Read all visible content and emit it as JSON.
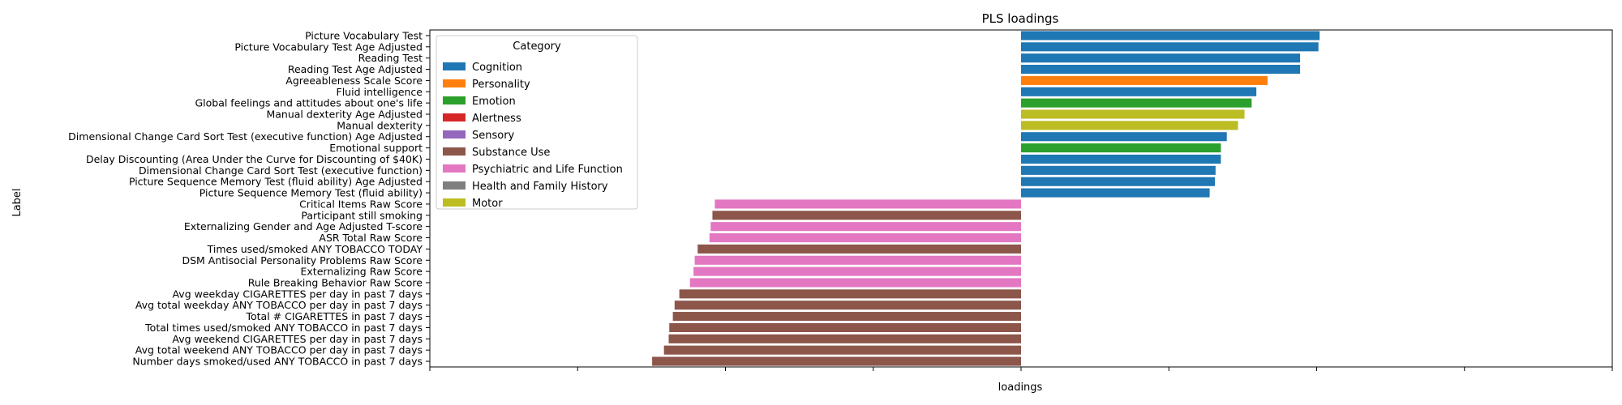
{
  "chart_data": {
    "type": "bar",
    "orientation": "horizontal",
    "title": "PLS loadings",
    "xlabel": "loadings",
    "ylabel": "Label",
    "xlim": [
      -1.0,
      1.0
    ],
    "xticks": [
      -1.0,
      -0.75,
      -0.5,
      -0.25,
      0.0,
      0.25,
      0.5,
      0.75,
      1.0
    ],
    "grid": false,
    "legend": {
      "title": "Category",
      "placement": "upper-left",
      "entries": [
        {
          "name": "Cognition",
          "color": "#1f77b4"
        },
        {
          "name": "Personality",
          "color": "#ff7f0e"
        },
        {
          "name": "Emotion",
          "color": "#2ca02c"
        },
        {
          "name": "Alertness",
          "color": "#d62728"
        },
        {
          "name": "Sensory",
          "color": "#9467bd"
        },
        {
          "name": "Substance Use",
          "color": "#8c564b"
        },
        {
          "name": "Psychiatric and Life Function",
          "color": "#e377c2"
        },
        {
          "name": "Health and Family History",
          "color": "#7f7f7f"
        },
        {
          "name": "Motor",
          "color": "#bcbd22"
        }
      ]
    },
    "bars": [
      {
        "label": "Picture Vocabulary Test",
        "value": 0.505,
        "category": "Cognition"
      },
      {
        "label": "Picture Vocabulary Test Age Adjusted",
        "value": 0.503,
        "category": "Cognition"
      },
      {
        "label": "Reading Test",
        "value": 0.472,
        "category": "Cognition"
      },
      {
        "label": "Reading Test Age Adjusted",
        "value": 0.472,
        "category": "Cognition"
      },
      {
        "label": "Agreeableness Scale Score",
        "value": 0.417,
        "category": "Personality"
      },
      {
        "label": "Fluid intelligence",
        "value": 0.398,
        "category": "Cognition"
      },
      {
        "label": "Global feelings and attitudes about one's life",
        "value": 0.39,
        "category": "Emotion"
      },
      {
        "label": "Manual dexterity Age Adjusted",
        "value": 0.378,
        "category": "Motor"
      },
      {
        "label": "Manual dexterity",
        "value": 0.367,
        "category": "Motor"
      },
      {
        "label": "Dimensional Change Card Sort Test (executive function) Age Adjusted",
        "value": 0.348,
        "category": "Cognition"
      },
      {
        "label": "Emotional support",
        "value": 0.338,
        "category": "Emotion"
      },
      {
        "label": "Delay Discounting (Area Under the Curve for Discounting of $40K)",
        "value": 0.338,
        "category": "Cognition"
      },
      {
        "label": "Dimensional Change Card Sort Test (executive function)",
        "value": 0.329,
        "category": "Cognition"
      },
      {
        "label": "Picture Sequence Memory Test (fluid ability) Age Adjusted",
        "value": 0.328,
        "category": "Cognition"
      },
      {
        "label": "Picture Sequence Memory Test (fluid ability)",
        "value": 0.319,
        "category": "Cognition"
      },
      {
        "label": "Critical Items Raw Score",
        "value": -0.518,
        "category": "Psychiatric and Life Function"
      },
      {
        "label": "Participant still smoking",
        "value": -0.522,
        "category": "Substance Use"
      },
      {
        "label": "Externalizing Gender and Age Adjusted T-score",
        "value": -0.525,
        "category": "Psychiatric and Life Function"
      },
      {
        "label": "ASR Total Raw Score",
        "value": -0.527,
        "category": "Psychiatric and Life Function"
      },
      {
        "label": "Times used/smoked ANY TOBACCO TODAY",
        "value": -0.547,
        "category": "Substance Use"
      },
      {
        "label": "DSM Antisocial Personality Problems Raw Score",
        "value": -0.552,
        "category": "Psychiatric and Life Function"
      },
      {
        "label": "Externalizing Raw Score",
        "value": -0.554,
        "category": "Psychiatric and Life Function"
      },
      {
        "label": "Rule Breaking Behavior Raw Score",
        "value": -0.56,
        "category": "Psychiatric and Life Function"
      },
      {
        "label": "Avg weekday CIGARETTES per day in past 7 days",
        "value": -0.578,
        "category": "Substance Use"
      },
      {
        "label": "Avg total weekday ANY TOBACCO per day in past 7 days",
        "value": -0.586,
        "category": "Substance Use"
      },
      {
        "label": "Total # CIGARETTES in past 7 days",
        "value": -0.589,
        "category": "Substance Use"
      },
      {
        "label": "Total times used/smoked ANY TOBACCO in past 7 days",
        "value": -0.595,
        "category": "Substance Use"
      },
      {
        "label": "Avg weekend CIGARETTES per day in past 7 days",
        "value": -0.596,
        "category": "Substance Use"
      },
      {
        "label": "Avg total weekend ANY TOBACCO per day in past 7 days",
        "value": -0.604,
        "category": "Substance Use"
      },
      {
        "label": "Number days smoked/used ANY TOBACCO in past 7 days",
        "value": -0.624,
        "category": "Substance Use"
      }
    ]
  }
}
